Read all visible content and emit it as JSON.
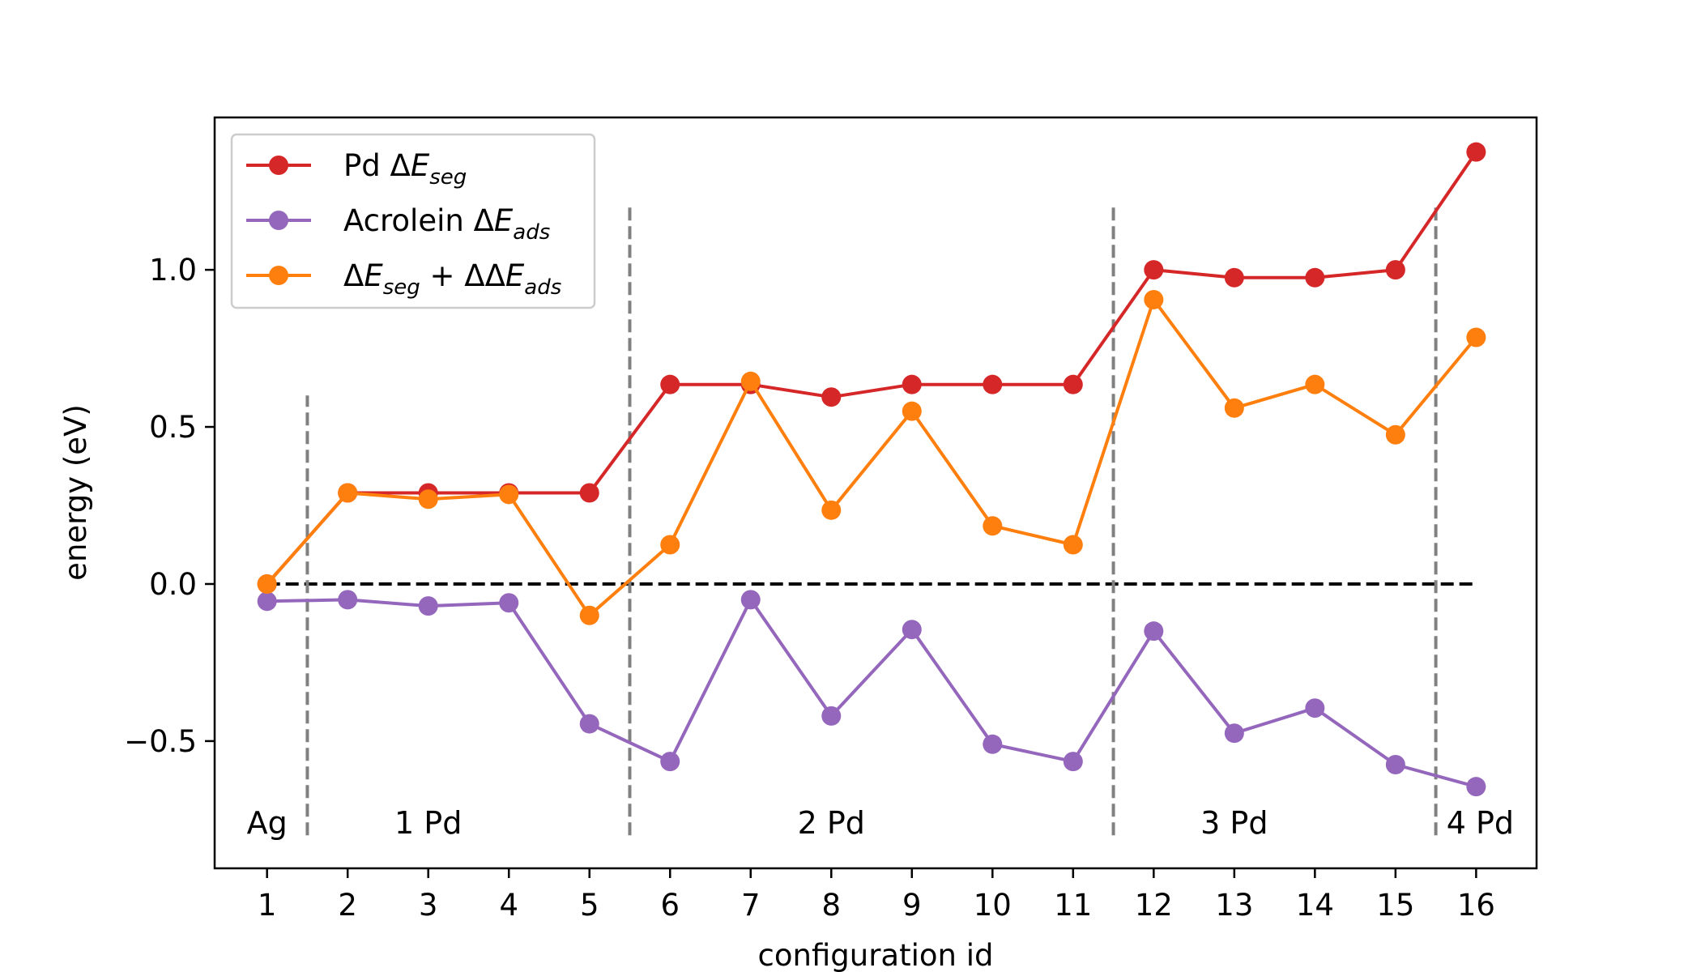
{
  "chart_data": {
    "type": "line",
    "xlabel": "configuration id",
    "ylabel": "energy (eV)",
    "xlim": [
      0.35,
      16.75
    ],
    "ylim": [
      -0.905,
      1.485
    ],
    "x": [
      1,
      2,
      3,
      4,
      5,
      6,
      7,
      8,
      9,
      10,
      11,
      12,
      13,
      14,
      15,
      16
    ],
    "x_tick_labels": [
      "1",
      "2",
      "3",
      "4",
      "5",
      "6",
      "7",
      "8",
      "9",
      "10",
      "11",
      "12",
      "13",
      "14",
      "15",
      "16"
    ],
    "y_ticks": [
      -0.5,
      0.0,
      0.5,
      1.0
    ],
    "y_tick_labels": [
      "−0.5",
      "0.0",
      "0.5",
      "1.0"
    ],
    "grid": false,
    "legend_position": "top-left",
    "series": [
      {
        "name": "Pd ΔE_seg",
        "legend_parts": [
          {
            "t": "Pd Δ"
          },
          {
            "t": "E",
            "style": "it"
          },
          {
            "t": "seg",
            "style": "sub"
          }
        ],
        "color": "#d62728",
        "values": [
          0.0,
          0.29,
          0.29,
          0.29,
          0.29,
          0.635,
          0.635,
          0.595,
          0.635,
          0.635,
          0.635,
          1.0,
          0.975,
          0.975,
          1.0,
          1.375
        ]
      },
      {
        "name": "Acrolein ΔE_ads",
        "legend_parts": [
          {
            "t": "Acrolein Δ"
          },
          {
            "t": "E",
            "style": "it"
          },
          {
            "t": "ads",
            "style": "sub"
          }
        ],
        "color": "#9467bd",
        "values": [
          -0.055,
          -0.05,
          -0.07,
          -0.06,
          -0.445,
          -0.565,
          -0.05,
          -0.42,
          -0.145,
          -0.51,
          -0.565,
          -0.15,
          -0.475,
          -0.395,
          -0.575,
          -0.645
        ]
      },
      {
        "name": "ΔE_seg + ΔΔE_ads",
        "legend_parts": [
          {
            "t": "Δ"
          },
          {
            "t": "E",
            "style": "it"
          },
          {
            "t": "seg",
            "style": "sub"
          },
          {
            "t": " + ΔΔ"
          },
          {
            "t": "E",
            "style": "it"
          },
          {
            "t": "ads",
            "style": "sub"
          }
        ],
        "color": "#ff7f0e",
        "values": [
          0.0,
          0.29,
          0.27,
          0.285,
          -0.1,
          0.125,
          0.645,
          0.235,
          0.55,
          0.185,
          0.125,
          0.905,
          0.56,
          0.635,
          0.475,
          0.785
        ]
      }
    ],
    "reference_line": {
      "y": 0.0,
      "x_range": [
        1,
        16
      ],
      "color": "#000000",
      "style": "dashed"
    },
    "region_dividers": [
      {
        "x": 1.5,
        "y_range": [
          -0.8,
          0.6
        ]
      },
      {
        "x": 5.5,
        "y_range": [
          -0.8,
          1.2
        ]
      },
      {
        "x": 11.5,
        "y_range": [
          -0.8,
          1.2
        ]
      },
      {
        "x": 15.5,
        "y_range": [
          -0.8,
          1.2
        ]
      }
    ],
    "divider_color": "#808080",
    "region_labels": [
      {
        "text": "Ag",
        "x": 1.0,
        "y": -0.76
      },
      {
        "text": "1 Pd",
        "x": 3.0,
        "y": -0.76
      },
      {
        "text": "2 Pd",
        "x": 8.0,
        "y": -0.76
      },
      {
        "text": "3 Pd",
        "x": 13.0,
        "y": -0.76
      },
      {
        "text": "4 Pd",
        "x": 16.05,
        "y": -0.76
      }
    ]
  }
}
